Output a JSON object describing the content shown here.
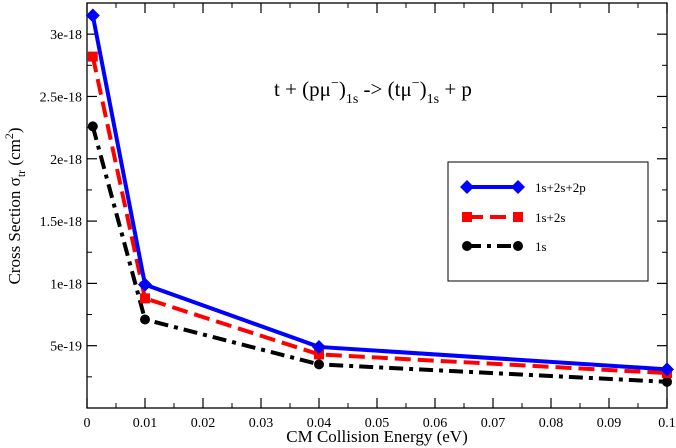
{
  "chart_data": {
    "type": "line",
    "title": "",
    "xlabel": "CM Collision Energy (eV)",
    "ylabel": {
      "main": "Cross Section σ",
      "sub": "tr",
      "unit_open": " (cm",
      "unit_sup": "2",
      "unit_close": ")"
    },
    "xlim": [
      0,
      0.1
    ],
    "ylim": [
      0,
      3.25e-18
    ],
    "xticks": [
      {
        "value": 0,
        "label": "0"
      },
      {
        "value": 0.01,
        "label": "0.01"
      },
      {
        "value": 0.02,
        "label": "0.02"
      },
      {
        "value": 0.03,
        "label": "0.03"
      },
      {
        "value": 0.04,
        "label": "0.04"
      },
      {
        "value": 0.05,
        "label": "0.05"
      },
      {
        "value": 0.06,
        "label": "0.06"
      },
      {
        "value": 0.07,
        "label": "0.07"
      },
      {
        "value": 0.08,
        "label": "0.08"
      },
      {
        "value": 0.09,
        "label": "0.09"
      },
      {
        "value": 0.1,
        "label": "0.1"
      }
    ],
    "yticks": [
      {
        "value": 5e-19,
        "label": "5e-19"
      },
      {
        "value": 1e-18,
        "label": "1e-18"
      },
      {
        "value": 1.5e-18,
        "label": "1.5e-18"
      },
      {
        "value": 2e-18,
        "label": "2e-18"
      },
      {
        "value": 2.5e-18,
        "label": "2.5e-18"
      },
      {
        "value": 3e-18,
        "label": "3e-18"
      }
    ],
    "x": [
      0.001,
      0.01,
      0.04,
      0.1
    ],
    "series": [
      {
        "name": "1s+2s+2p",
        "values": [
          3.15e-18,
          9.9e-19,
          4.9e-19,
          3.1e-19
        ],
        "color": "#0000ff",
        "dash": "solid",
        "marker": "diamond"
      },
      {
        "name": "1s+2s",
        "values": [
          2.82e-18,
          8.8e-19,
          4.3e-19,
          2.8e-19
        ],
        "color": "#ff0000",
        "dash": "dashed",
        "marker": "square"
      },
      {
        "name": "1s",
        "values": [
          2.26e-18,
          7.1e-19,
          3.5e-19,
          2.1e-19
        ],
        "color": "#000000",
        "dash": "dashdot",
        "marker": "circle"
      }
    ],
    "legend_position": "center-right",
    "grid": false,
    "annotation": {
      "a1": "t + (pμ",
      "a2": "−",
      "a3": ")",
      "a4": "1s",
      "a5": " -> (tμ",
      "a6": "−",
      "a7": ")",
      "a8": "1s",
      "a9": " + p"
    }
  }
}
